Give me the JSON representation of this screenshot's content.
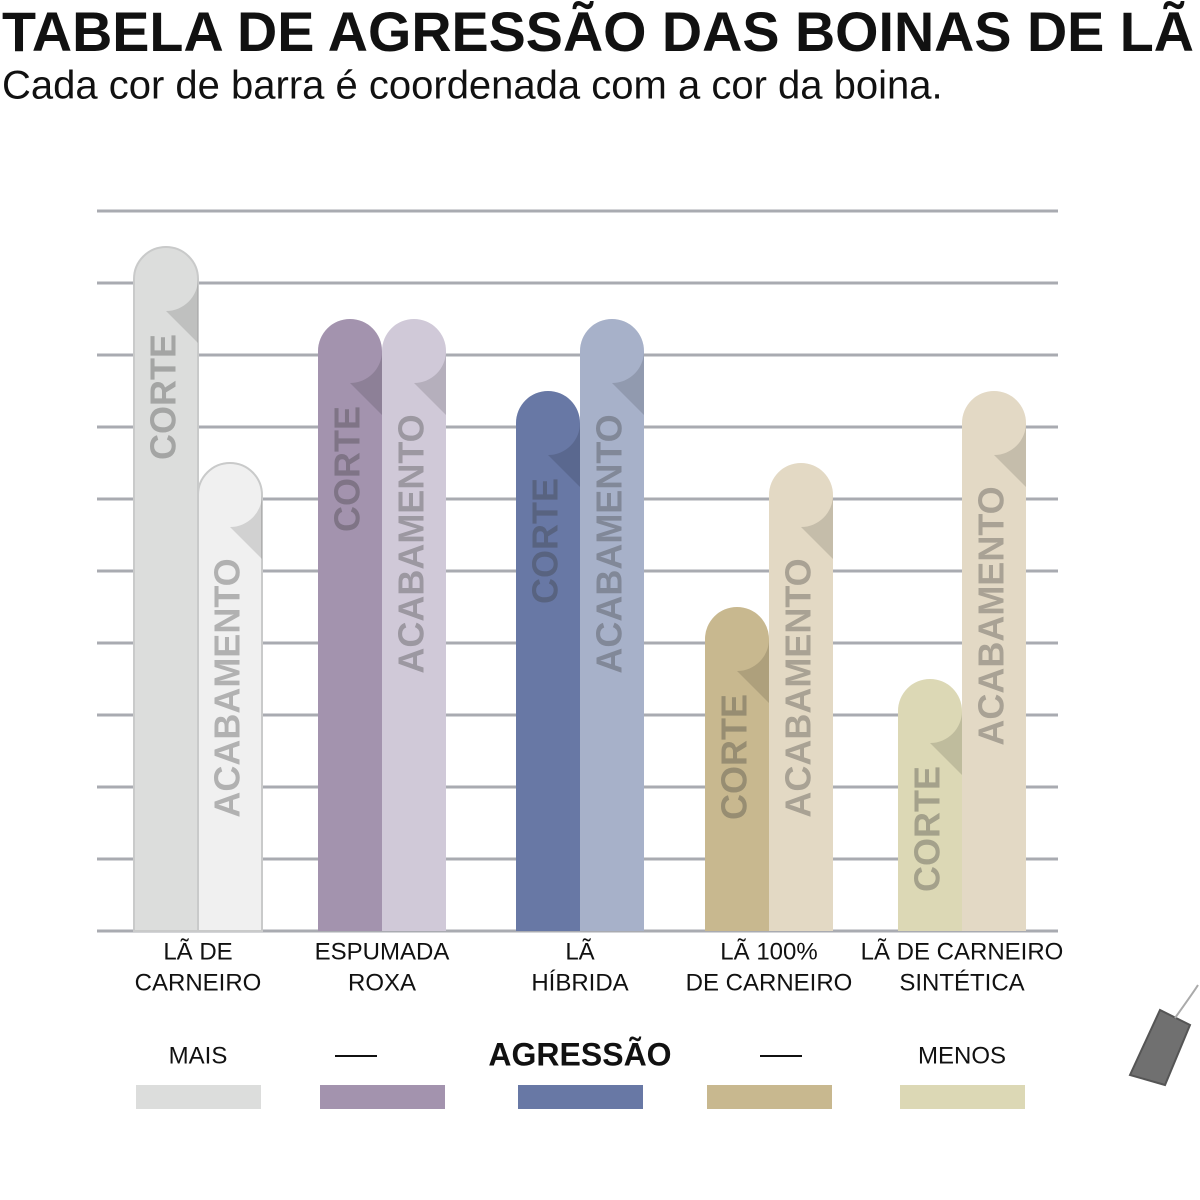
{
  "chart_data": {
    "type": "bar",
    "title": "TABELA DE AGRESSÃO DAS BOINAS DE LÃ",
    "subtitle": "Cada cor de barra é coordenada com a cor da boina.",
    "categories": [
      [
        "LÃ DE",
        "CARNEIRO"
      ],
      [
        "ESPUMADA",
        "ROXA"
      ],
      [
        "LÃ",
        "HÍBRIDA"
      ],
      [
        "LÃ 100%",
        "DE CARNEIRO"
      ],
      [
        "LÃ DE CARNEIRO",
        "SINTÉTICA"
      ]
    ],
    "series": [
      {
        "name": "CORTE",
        "colors": [
          "#dcdddc",
          "#a393ae",
          "#6878a5",
          "#c8b88f",
          "#dcd8b5"
        ],
        "values": [
          9.5,
          8.5,
          7.5,
          4.5,
          3.5
        ]
      },
      {
        "name": "ACABAMENTO",
        "colors": [
          "#f0f0f0",
          "#d0c9d8",
          "#a7b1c9",
          "#e3d9c4",
          "#e3d9c5"
        ],
        "values": [
          6.5,
          8.5,
          8.5,
          6.5,
          7.5
        ]
      }
    ],
    "ylim": [
      0,
      10
    ],
    "yticks": [
      0,
      1,
      2,
      3,
      4,
      5,
      6,
      7,
      8,
      9,
      10
    ],
    "grid": true,
    "legend": {
      "left": "MAIS",
      "title": "AGRESSÃO",
      "right": "MENOS"
    }
  }
}
